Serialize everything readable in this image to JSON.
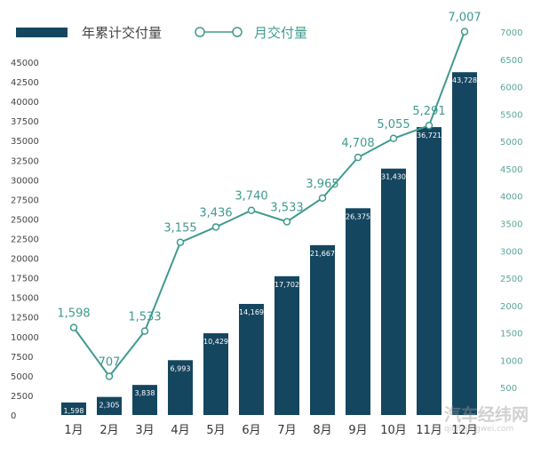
{
  "chart_data": {
    "type": "bar+line",
    "categories": [
      "1月",
      "2月",
      "3月",
      "4月",
      "5月",
      "6月",
      "7月",
      "8月",
      "9月",
      "10月",
      "11月",
      "12月"
    ],
    "series": [
      {
        "name": "年累计交付量",
        "type": "bar",
        "axis": "left",
        "values": [
          1598,
          2305,
          3838,
          6993,
          10429,
          14169,
          17702,
          21667,
          26375,
          31430,
          36721,
          43728
        ],
        "labels": [
          "1,598",
          "2,305",
          "3,838",
          "6,993",
          "10,429",
          "14,169",
          "17,702",
          "21,667",
          "26,375",
          "31,430",
          "36,721",
          "43,728"
        ]
      },
      {
        "name": "月交付量",
        "type": "line",
        "axis": "right",
        "values": [
          1598,
          707,
          1533,
          3155,
          3436,
          3740,
          3533,
          3965,
          4708,
          5055,
          5291,
          7007
        ],
        "labels": [
          "1,598",
          "707",
          "1,533",
          "3,155",
          "3,436",
          "3,740",
          "3,533",
          "3,965",
          "4,708",
          "5,055",
          "5,291",
          "7,007"
        ]
      }
    ],
    "left_axis": {
      "range": [
        0,
        45000
      ],
      "ticks": [
        0,
        2500,
        5000,
        7500,
        10000,
        12500,
        15000,
        17500,
        20000,
        22500,
        25000,
        27500,
        30000,
        32500,
        35000,
        37500,
        40000,
        42500,
        45000
      ]
    },
    "right_axis": {
      "range": [
        0,
        7000
      ],
      "ticks": [
        500,
        1000,
        1500,
        2000,
        2500,
        3000,
        3500,
        4000,
        4500,
        5000,
        5500,
        6000,
        6500,
        7000
      ]
    },
    "legend_placement": "top-left",
    "grid": false,
    "colors": {
      "bar": "#15465f",
      "line": "#3f9a8f",
      "left_tick": "#444444",
      "right_tick": "#5aa59b"
    }
  },
  "legend": {
    "bar_label": "年累计交付量",
    "line_label": "月交付量"
  },
  "watermark": {
    "name": "汽车经纬网",
    "url": "qichejingwei.com"
  }
}
